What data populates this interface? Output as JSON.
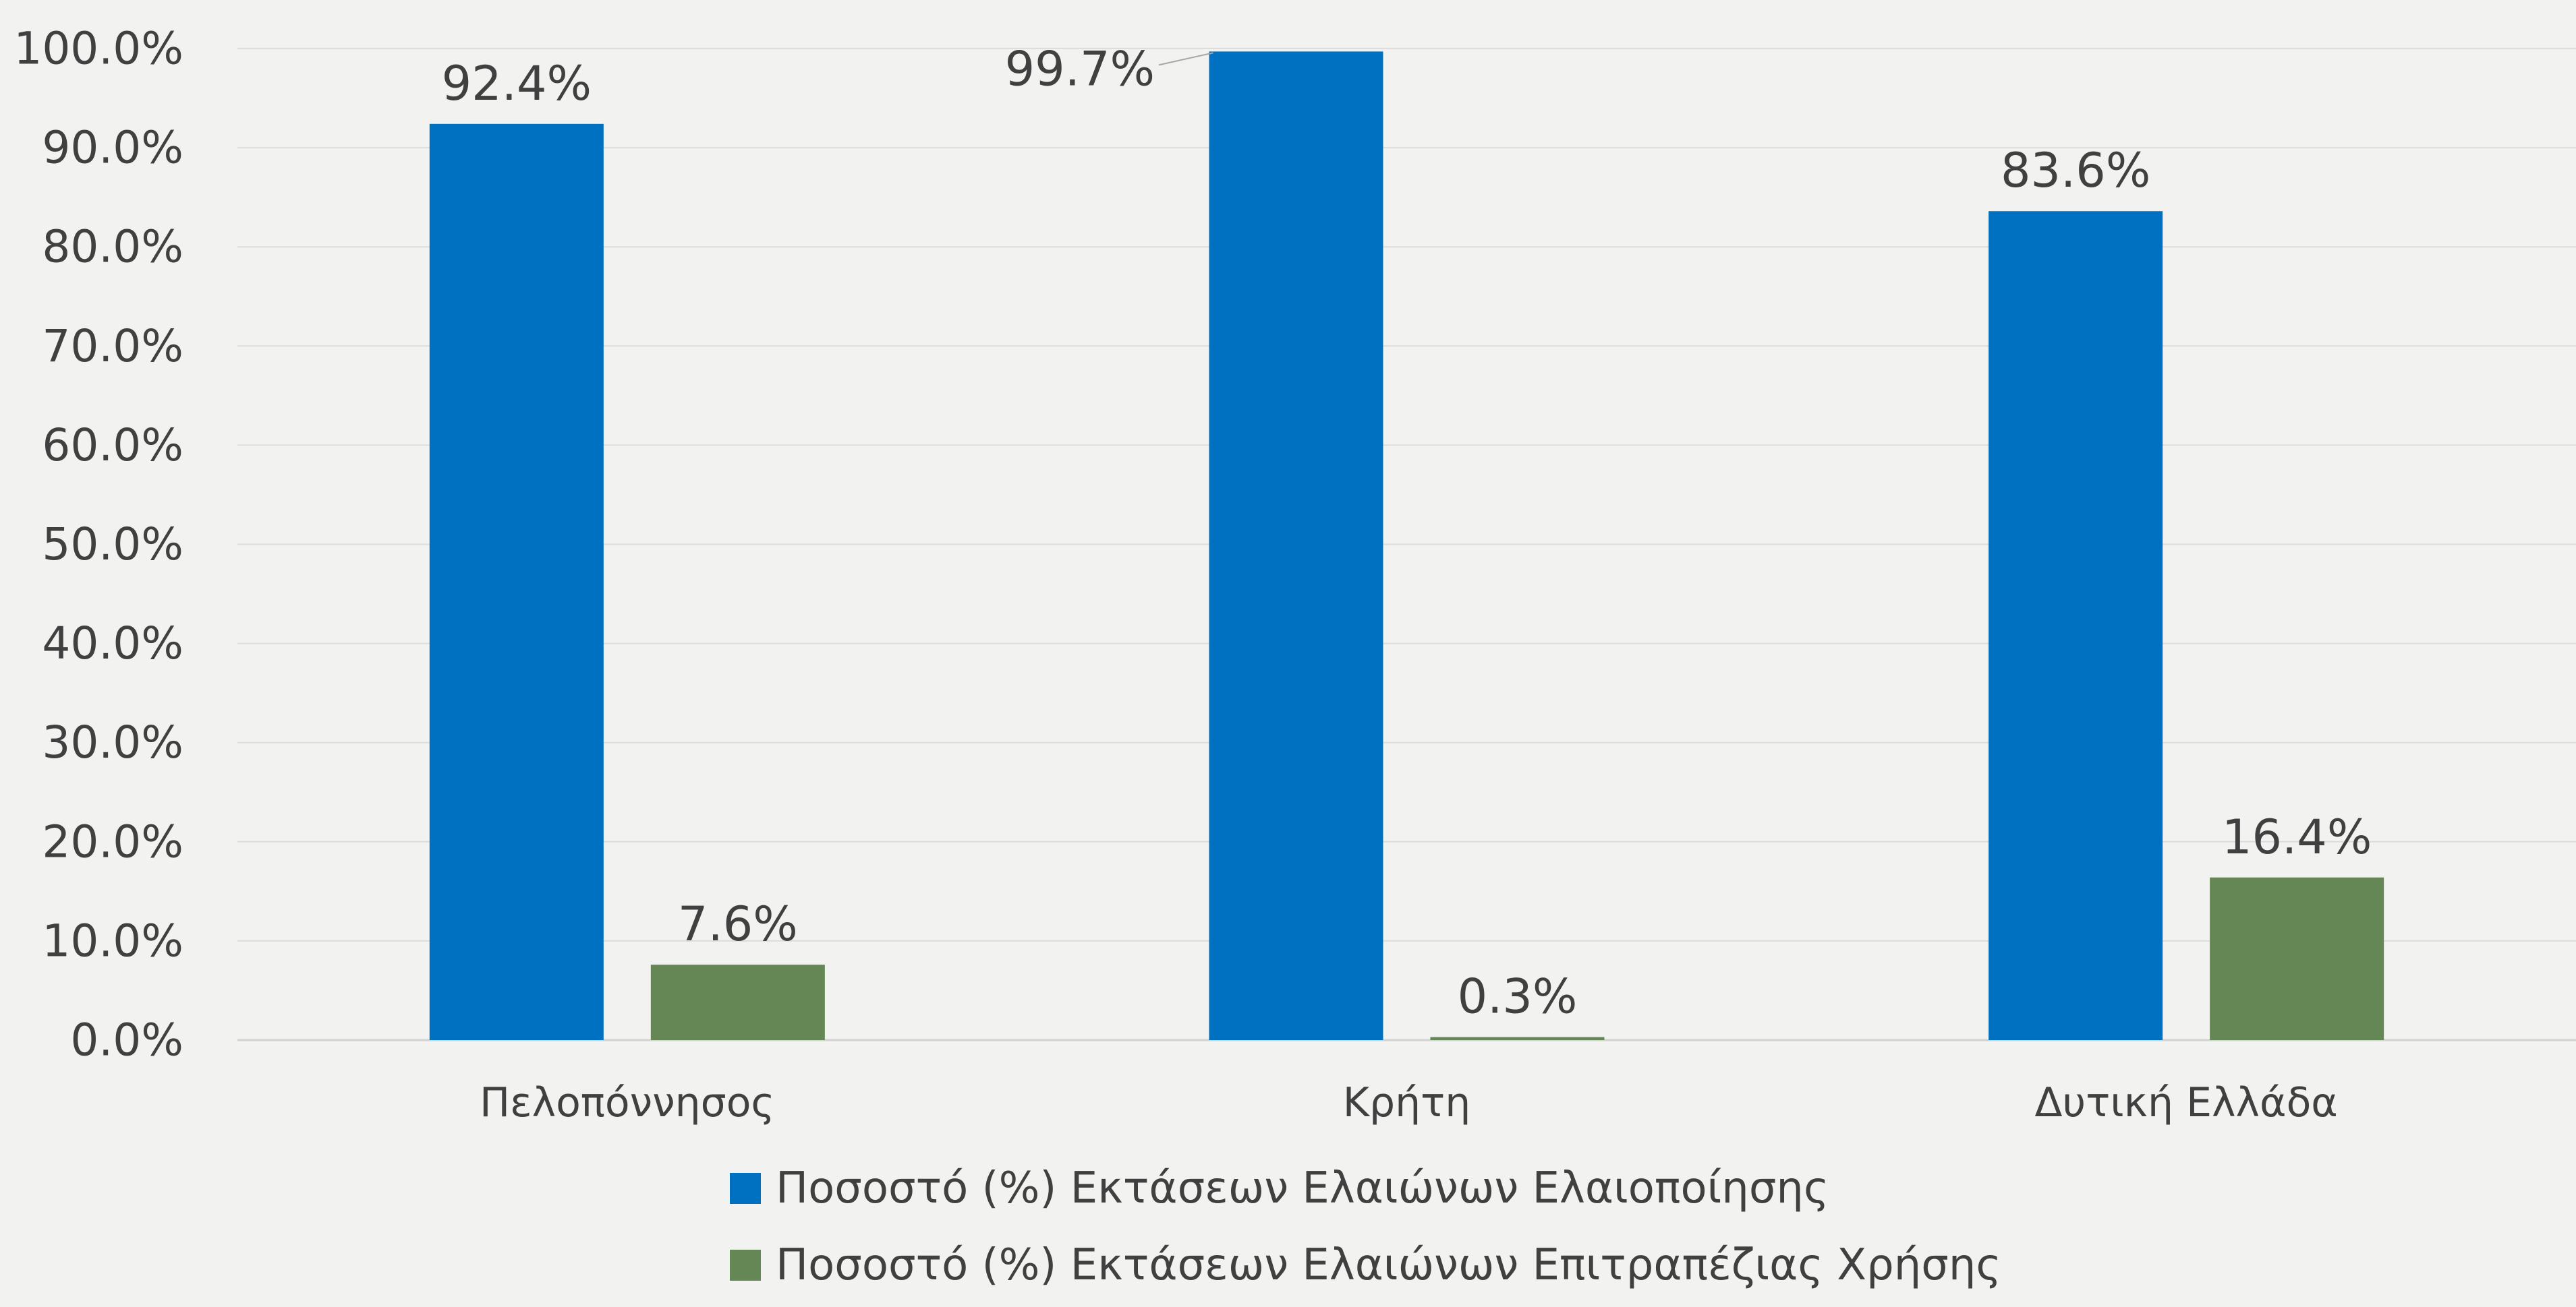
{
  "chart_data": {
    "type": "bar",
    "categories": [
      "Πελοπόννησος",
      "Κρήτη",
      "Δυτική Ελλάδα"
    ],
    "series": [
      {
        "name": "Ποσοστό (%) Εκτάσεων Ελαιώνων Ελαιοποίησης",
        "values": [
          92.4,
          99.7,
          83.6
        ],
        "labels": [
          "92.4%",
          "99.7%",
          "83.6%"
        ],
        "color": "#0070c0"
      },
      {
        "name": "Ποσοστό (%) Εκτάσεων Ελαιώνων Επιτραπέζιας Χρήσης",
        "values": [
          7.6,
          0.3,
          16.4
        ],
        "labels": [
          "7.6%",
          "0.3%",
          "16.4%"
        ],
        "color": "#658755"
      }
    ],
    "ylim": [
      0,
      100
    ],
    "yticks": [
      "0.0%",
      "10.0%",
      "20.0%",
      "30.0%",
      "40.0%",
      "50.0%",
      "60.0%",
      "70.0%",
      "80.0%",
      "90.0%",
      "100.0%"
    ],
    "title": "",
    "xlabel": "",
    "ylabel": "",
    "grid": true,
    "legend_position": "bottom"
  }
}
